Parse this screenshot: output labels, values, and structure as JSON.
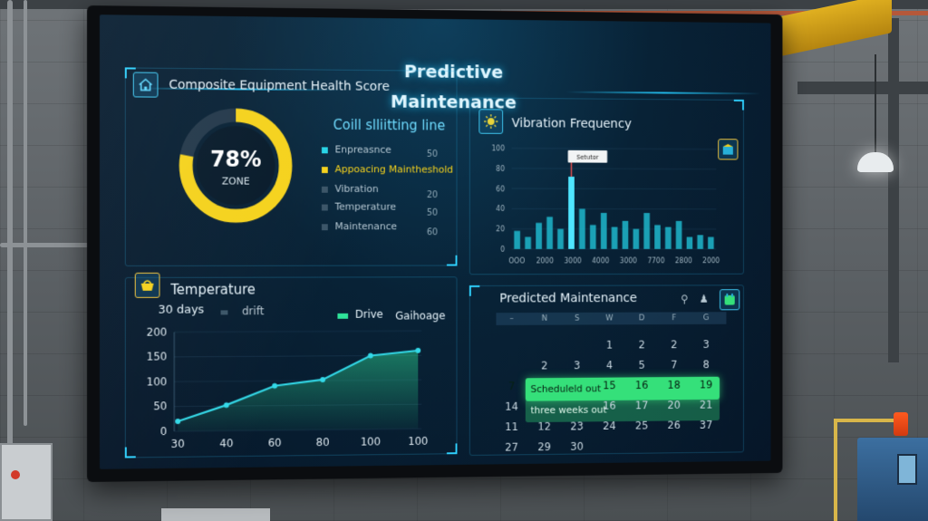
{
  "dashboard": {
    "title": "Predictive Maintenance"
  },
  "health": {
    "title": "Composite Equipment Health Score",
    "score": "78%",
    "zone": "ZONE",
    "score_fraction": 0.78,
    "legend_title": "Coill slliitting line",
    "legend": [
      {
        "label": "Enpreasnce",
        "value": "50",
        "color": "#27d3e6"
      },
      {
        "label": "Appoacing Maintheshold",
        "value": "",
        "color": "#f5d21c"
      },
      {
        "label": "Vibration",
        "value": "20",
        "color": "#3b5568"
      },
      {
        "label": "Temperature",
        "value": "50",
        "color": "#3b5568"
      },
      {
        "label": "Maintenance",
        "value": "60",
        "color": "#3b5568"
      }
    ]
  },
  "vibration": {
    "title": "Vibration Frequency",
    "callout": "Setutor",
    "chart_data": {
      "type": "bar",
      "yticks": [
        "100",
        "80",
        "60",
        "40",
        "20",
        "0"
      ],
      "xticks": [
        "OOO",
        "2000",
        "3000",
        "4000",
        "3000",
        "7700",
        "2800",
        "2000"
      ],
      "ylim": [
        0,
        100
      ],
      "values": [
        18,
        12,
        26,
        32,
        20,
        72,
        40,
        24,
        36,
        22,
        28,
        20,
        36,
        24,
        22,
        28,
        12,
        14,
        12
      ],
      "peak_index": 5
    }
  },
  "temperature": {
    "title": "Temperature",
    "range_label": "30 days",
    "drift_label": "drift",
    "legend_drive": "Drive",
    "legend_other": "Gaihoage",
    "chart_data": {
      "type": "line",
      "x": [
        "30",
        "40",
        "60",
        "80",
        "100",
        "100"
      ],
      "y": [
        20,
        52,
        90,
        102,
        150,
        160
      ],
      "yticks": [
        "200",
        "150",
        "100",
        "50",
        "0"
      ],
      "ylim": [
        0,
        200
      ]
    }
  },
  "calendar": {
    "title": "Predicted Maintenance",
    "headers": [
      "–",
      "N",
      "S",
      "W",
      "D",
      "F",
      "G"
    ],
    "rows": [
      [
        "",
        "",
        "",
        "1",
        "2",
        "2",
        "3"
      ],
      [
        "",
        "2",
        "3",
        "4",
        "5",
        "7",
        "8"
      ],
      [
        "7",
        "",
        "",
        "15",
        "16",
        "18",
        "19"
      ],
      [
        "14",
        "",
        "",
        "16",
        "17",
        "20",
        "21"
      ],
      [
        "11",
        "12",
        "23",
        "24",
        "25",
        "26",
        "37"
      ],
      [
        "27",
        "29",
        "30",
        "",
        "",
        "",
        ""
      ]
    ],
    "highlight_1": "Scheduleld out",
    "highlight_2": "three weeks out"
  },
  "colors": {
    "accent": "#27d3e6",
    "warning": "#f5d21c",
    "highlight": "#35e07a"
  }
}
